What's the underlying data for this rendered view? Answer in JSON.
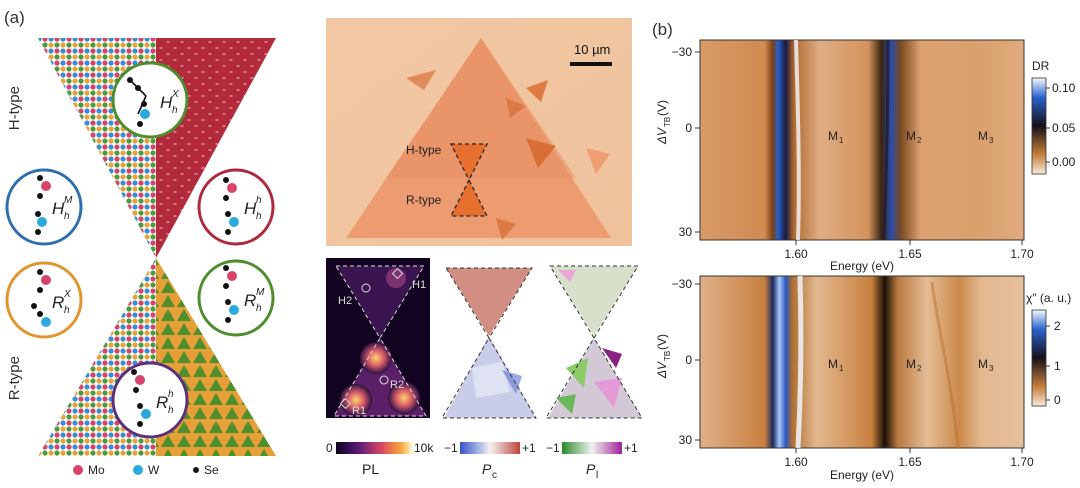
{
  "panel_a": {
    "label": "(a)",
    "h_type_label": "H-type",
    "r_type_label": "R-type",
    "stackings": [
      {
        "id": "Hhx",
        "main": "H",
        "sub": "h",
        "sup": "X",
        "ring": "#4e8d2c"
      },
      {
        "id": "HhM",
        "main": "H",
        "sub": "h",
        "sup": "M",
        "ring": "#2f6fb0"
      },
      {
        "id": "Hhh",
        "main": "H",
        "sub": "h",
        "sup": "h",
        "ring": "#b0283c"
      },
      {
        "id": "RhX",
        "main": "R",
        "sub": "h",
        "sup": "X",
        "ring": "#e0952c"
      },
      {
        "id": "RhM",
        "main": "R",
        "sub": "h",
        "sup": "M",
        "ring": "#4e8d2c"
      },
      {
        "id": "Rhh",
        "main": "R",
        "sub": "h",
        "sup": "h",
        "ring": "#5c2f7a"
      }
    ],
    "legend": [
      {
        "label": "Mo",
        "color": "#d8436a"
      },
      {
        "label": "W",
        "color": "#2aa9dc"
      },
      {
        "label": "Se",
        "color": "#111111"
      }
    ]
  },
  "micrograph": {
    "scalebar": "10 µm",
    "h_type": "H-type",
    "r_type": "R-type"
  },
  "maps": {
    "region_labels": [
      "H1",
      "H2",
      "R1",
      "R2"
    ],
    "colorbars": [
      {
        "min": "0",
        "max": "10k",
        "name": "PL"
      },
      {
        "min": "−1",
        "max": "+1",
        "name": "P",
        "sub": "c"
      },
      {
        "min": "−1",
        "max": "+1",
        "name": "P",
        "sub": "l"
      }
    ]
  },
  "panel_b": {
    "label": "(b)",
    "top": {
      "ylabel_main": "ΔV",
      "ylabel_sub": "TB",
      "ylabel_unit": " (V)",
      "yticks": [
        "−30",
        "0",
        "30"
      ],
      "xticks": [
        "1.60",
        "1.65",
        "1.70"
      ],
      "xlabel": "Energy (eV)",
      "modes": [
        {
          "m": "M",
          "s": "1"
        },
        {
          "m": "M",
          "s": "2"
        },
        {
          "m": "M",
          "s": "3"
        }
      ],
      "cbar_title": "DR",
      "cbar_ticks": [
        "0.10",
        "0.05",
        "0.00"
      ]
    },
    "bottom": {
      "ylabel_main": "ΔV",
      "ylabel_sub": "TB",
      "ylabel_unit": " (V)",
      "yticks": [
        "−30",
        "0",
        "30"
      ],
      "xticks": [
        "1.60",
        "1.65",
        "1.70"
      ],
      "xlabel": "Energy (eV)",
      "modes": [
        {
          "m": "M",
          "s": "1"
        },
        {
          "m": "M",
          "s": "2"
        },
        {
          "m": "M",
          "s": "3"
        }
      ],
      "cbar_title": "χ″ (a. u.)",
      "cbar_ticks": [
        "2",
        "1",
        "0"
      ]
    }
  }
}
